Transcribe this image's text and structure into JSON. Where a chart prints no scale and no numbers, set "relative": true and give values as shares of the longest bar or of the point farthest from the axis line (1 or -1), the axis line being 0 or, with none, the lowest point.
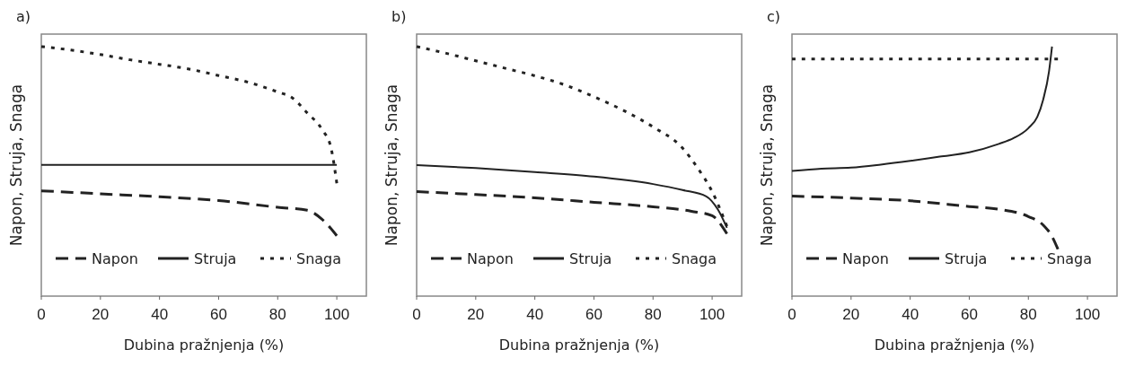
{
  "chart_data": [
    {
      "type": "line",
      "title": "a)",
      "xlabel": "Dubina pražnjenja (%)",
      "ylabel": "Napon, Struja, Snaga",
      "relative": true,
      "xlim": [
        0,
        110
      ],
      "xticks": [
        0,
        20,
        40,
        60,
        80,
        100
      ],
      "legend": "bottom",
      "series": [
        {
          "name": "Napon",
          "color": "#222222",
          "line_style": "dashed",
          "x": [
            0,
            20,
            40,
            60,
            80,
            90,
            95,
            100
          ],
          "values": [
            0.422,
            0.41,
            0.398,
            0.383,
            0.356,
            0.344,
            0.308,
            0.242
          ]
        },
        {
          "name": "Struja",
          "color": "#222222",
          "line_style": "solid",
          "x": [
            0,
            100
          ],
          "values": [
            0.526,
            0.526
          ]
        },
        {
          "name": "Snaga",
          "color": "#222222",
          "line_style": "dotted",
          "x": [
            0,
            10,
            20,
            30,
            40,
            50,
            60,
            70,
            80,
            85,
            90,
            95,
            98,
            100
          ],
          "values": [
            1,
            0.986,
            0.968,
            0.947,
            0.929,
            0.91,
            0.884,
            0.857,
            0.818,
            0.794,
            0.734,
            0.668,
            0.596,
            0.452
          ]
        }
      ]
    },
    {
      "type": "line",
      "title": "b)",
      "xlabel": "Dubina pražnjenja (%)",
      "ylabel": "Napon, Struja, Snaga",
      "relative": true,
      "xlim": [
        0,
        110
      ],
      "xticks": [
        0,
        20,
        40,
        60,
        80,
        100
      ],
      "legend": "bottom",
      "series": [
        {
          "name": "Napon",
          "color": "#222222",
          "line_style": "dashed",
          "x": [
            0,
            20,
            40,
            60,
            80,
            93,
            100,
            105
          ],
          "values": [
            0.419,
            0.407,
            0.394,
            0.376,
            0.358,
            0.34,
            0.322,
            0.25
          ]
        },
        {
          "name": "Struja",
          "color": "#222222",
          "line_style": "solid",
          "x": [
            0,
            20,
            40,
            60,
            80,
            90,
            98,
            102,
            105
          ],
          "values": [
            0.525,
            0.513,
            0.497,
            0.479,
            0.449,
            0.425,
            0.4,
            0.346,
            0.274
          ]
        },
        {
          "name": "Snaga",
          "color": "#222222",
          "line_style": "dotted",
          "x": [
            0,
            10,
            20,
            30,
            40,
            50,
            60,
            70,
            80,
            90,
            95,
            100,
            105
          ],
          "values": [
            1,
            0.973,
            0.943,
            0.913,
            0.883,
            0.847,
            0.799,
            0.744,
            0.678,
            0.593,
            0.515,
            0.419,
            0.28
          ]
        }
      ]
    },
    {
      "type": "line",
      "title": "c)",
      "xlabel": "Dubina pražnjenja (%)",
      "ylabel": "Napon, Struja, Snaga",
      "relative": true,
      "xlim": [
        0,
        110
      ],
      "xticks": [
        0,
        20,
        40,
        60,
        80,
        100
      ],
      "legend": "bottom",
      "series": [
        {
          "name": "Napon",
          "color": "#222222",
          "line_style": "dashed",
          "x": [
            0,
            20,
            40,
            60,
            70,
            80,
            85,
            88,
            90
          ],
          "values": [
            0.401,
            0.393,
            0.382,
            0.359,
            0.348,
            0.319,
            0.285,
            0.239,
            0.188
          ]
        },
        {
          "name": "Struja",
          "color": "#222222",
          "line_style": "solid",
          "x": [
            0,
            10,
            20,
            30,
            40,
            50,
            60,
            70,
            75,
            80,
            83,
            85,
            87,
            88
          ],
          "values": [
            0.502,
            0.511,
            0.515,
            0.527,
            0.542,
            0.559,
            0.576,
            0.61,
            0.633,
            0.673,
            0.718,
            0.787,
            0.901,
            1
          ]
        },
        {
          "name": "Snaga",
          "color": "#222222",
          "line_style": "dotted",
          "x": [
            0,
            90
          ],
          "values": [
            0.95,
            0.95
          ]
        }
      ]
    }
  ]
}
